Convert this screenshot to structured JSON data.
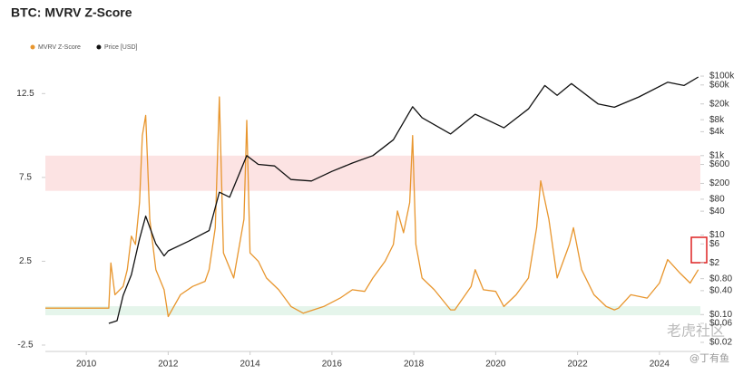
{
  "chart_data": {
    "type": "line",
    "title": "BTC: MVRV Z-Score",
    "xlim": [
      2009,
      2025
    ],
    "xticks": [
      2010,
      2012,
      2014,
      2016,
      2018,
      2020,
      2022,
      2024
    ],
    "ylim": [
      -2.88,
      14.3
    ],
    "yticks": [
      12.5,
      7.5,
      2.5,
      -2.5
    ],
    "y2lim": [
      0.0118,
      209000
    ],
    "y2log": true,
    "y2ticks": [
      {
        "value": 100000,
        "label": "$100k"
      },
      {
        "value": 60000,
        "label": "$60k"
      },
      {
        "value": 20000,
        "label": "$20k"
      },
      {
        "value": 8000,
        "label": "$8k"
      },
      {
        "value": 4000,
        "label": "$4k"
      },
      {
        "value": 1000,
        "label": "$1k"
      },
      {
        "value": 600,
        "label": "$600"
      },
      {
        "value": 200,
        "label": "$200"
      },
      {
        "value": 80,
        "label": "$80"
      },
      {
        "value": 40,
        "label": "$40"
      },
      {
        "value": 10,
        "label": "$10"
      },
      {
        "value": 6,
        "label": "$6"
      },
      {
        "value": 2,
        "label": "$2"
      },
      {
        "value": 0.8,
        "label": "$0.80"
      },
      {
        "value": 0.4,
        "label": "$0.40"
      },
      {
        "value": 0.1,
        "label": "$0.10"
      },
      {
        "value": 0.06,
        "label": "$0.06"
      },
      {
        "value": 0.02,
        "label": "$0.02"
      }
    ],
    "bands": [
      {
        "from": 6.7,
        "to": 8.8,
        "color": "#fbdcdc"
      },
      {
        "from": -0.72,
        "to": -0.18,
        "color": "#dff3e6"
      }
    ],
    "series": [
      {
        "name": "MVRV Z-Score",
        "color": "#e8962e",
        "axis": "y",
        "x": [
          2009.0,
          2010.55,
          2010.6,
          2010.7,
          2010.9,
          2011.0,
          2011.1,
          2011.2,
          2011.3,
          2011.37,
          2011.45,
          2011.55,
          2011.7,
          2011.9,
          2012.0,
          2012.3,
          2012.6,
          2012.9,
          2013.0,
          2013.15,
          2013.25,
          2013.35,
          2013.6,
          2013.85,
          2013.92,
          2014.0,
          2014.2,
          2014.4,
          2014.7,
          2015.0,
          2015.3,
          2015.8,
          2016.2,
          2016.5,
          2016.8,
          2017.0,
          2017.3,
          2017.5,
          2017.6,
          2017.75,
          2017.9,
          2017.97,
          2018.05,
          2018.2,
          2018.5,
          2018.9,
          2019.0,
          2019.4,
          2019.5,
          2019.7,
          2020.0,
          2020.2,
          2020.5,
          2020.8,
          2021.0,
          2021.1,
          2021.3,
          2021.5,
          2021.8,
          2021.9,
          2022.1,
          2022.4,
          2022.7,
          2022.9,
          2023.0,
          2023.3,
          2023.7,
          2024.0,
          2024.2,
          2024.5,
          2024.75,
          2024.95
        ],
        "values": [
          -0.3,
          -0.3,
          2.4,
          0.5,
          1.0,
          2.0,
          4.0,
          3.5,
          6.0,
          10.0,
          11.2,
          5.0,
          2.0,
          0.8,
          -0.8,
          0.5,
          1.0,
          1.3,
          2.0,
          4.5,
          12.3,
          3.0,
          1.5,
          5.0,
          10.9,
          3.0,
          2.5,
          1.5,
          0.8,
          -0.2,
          -0.6,
          -0.2,
          0.3,
          0.8,
          0.7,
          1.5,
          2.5,
          3.5,
          5.5,
          4.2,
          6.0,
          10.0,
          3.5,
          1.5,
          0.8,
          -0.4,
          -0.4,
          1.0,
          2.0,
          0.8,
          0.7,
          -0.2,
          0.5,
          1.5,
          4.5,
          7.3,
          5.0,
          1.5,
          3.5,
          4.5,
          2.0,
          0.5,
          -0.2,
          -0.4,
          -0.3,
          0.5,
          0.3,
          1.2,
          2.6,
          1.8,
          1.2,
          2.0
        ]
      },
      {
        "name": "Price [USD]",
        "color": "#111111",
        "axis": "y2",
        "x": [
          2010.55,
          2010.75,
          2010.9,
          2011.1,
          2011.3,
          2011.45,
          2011.7,
          2011.9,
          2012.0,
          2012.5,
          2013.0,
          2013.25,
          2013.5,
          2013.92,
          2014.2,
          2014.6,
          2015.0,
          2015.5,
          2016.0,
          2016.5,
          2017.0,
          2017.5,
          2017.97,
          2018.2,
          2018.9,
          2019.5,
          2020.2,
          2020.8,
          2021.2,
          2021.5,
          2021.85,
          2022.5,
          2022.9,
          2023.5,
          2024.2,
          2024.6,
          2024.95
        ],
        "values": [
          0.06,
          0.07,
          0.3,
          1,
          8,
          30,
          6,
          3,
          4,
          7,
          13,
          120,
          90,
          1000,
          600,
          550,
          250,
          230,
          400,
          650,
          1000,
          2500,
          17000,
          9000,
          3500,
          11000,
          5000,
          15000,
          58000,
          33000,
          65000,
          20000,
          16500,
          30000,
          70000,
          58000,
          95000
        ]
      }
    ],
    "annotations": [
      "老虎社区",
      "@丁有鱼"
    ]
  }
}
